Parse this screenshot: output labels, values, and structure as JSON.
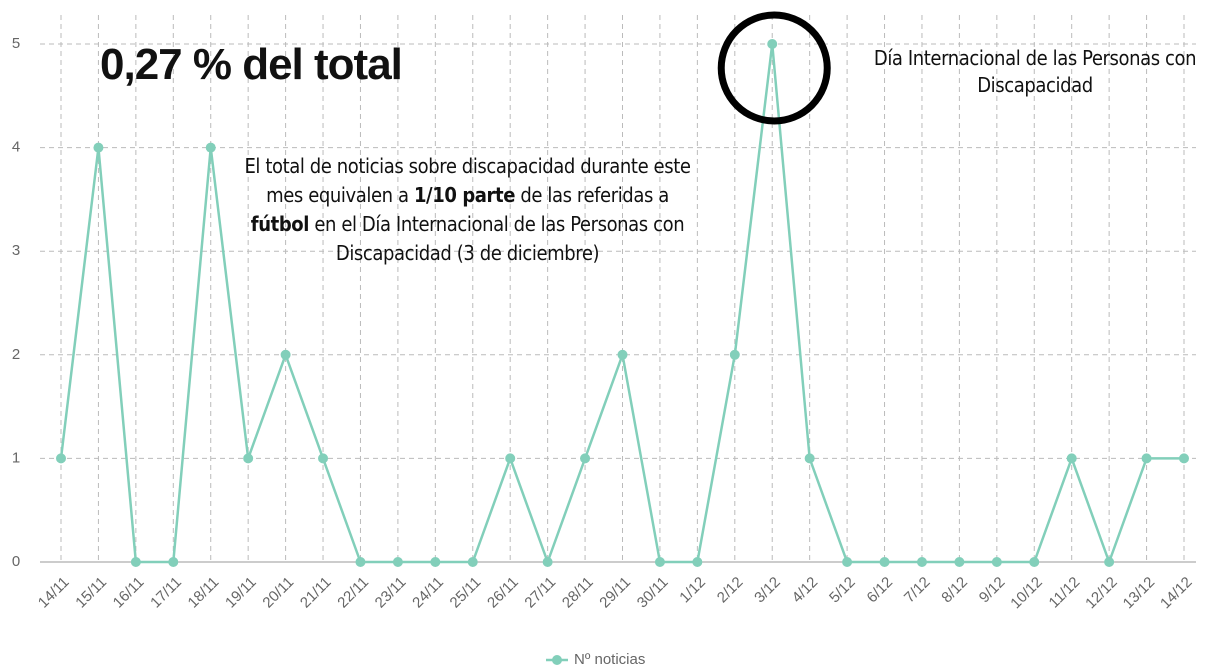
{
  "chart_data": {
    "type": "line",
    "title": "0,27 % del total",
    "annotations": [
      {
        "segments": [
          {
            "text": "El total de noticias sobre discapacidad durante este mes equivalen a ",
            "bold": false
          },
          {
            "text": "1/10 parte",
            "bold": true
          },
          {
            "text": " de las referidas a ",
            "bold": false
          },
          {
            "text": "fútbol",
            "bold": true
          },
          {
            "text": " en el Día Internacional de las Personas con Discapacidad (3 de diciembre)",
            "bold": false
          }
        ]
      },
      {
        "segments": [
          {
            "text": "Día Internacional de las Personas con Discapacidad",
            "bold": false
          }
        ],
        "category": "3/12"
      }
    ],
    "categories": [
      "14/11",
      "15/11",
      "16/11",
      "17/11",
      "18/11",
      "19/11",
      "20/11",
      "21/11",
      "22/11",
      "23/11",
      "24/11",
      "25/11",
      "26/11",
      "27/11",
      "28/11",
      "29/11",
      "30/11",
      "1/12",
      "2/12",
      "3/12",
      "4/12",
      "5/12",
      "6/12",
      "7/12",
      "8/12",
      "9/12",
      "10/12",
      "11/12",
      "12/12",
      "13/12",
      "14/12"
    ],
    "series": [
      {
        "name": "Nº noticias",
        "color": "#82cfba",
        "values": [
          1,
          4,
          0,
          0,
          4,
          1,
          2,
          1,
          0,
          0,
          0,
          0,
          1,
          0,
          1,
          2,
          0,
          0,
          2,
          5,
          1,
          0,
          0,
          0,
          0,
          0,
          0,
          1,
          0,
          1,
          1
        ]
      }
    ],
    "ylim": [
      0,
      5
    ],
    "yticks": [
      0,
      1,
      2,
      3,
      4,
      5
    ],
    "grid": true,
    "legend": "bottom"
  }
}
